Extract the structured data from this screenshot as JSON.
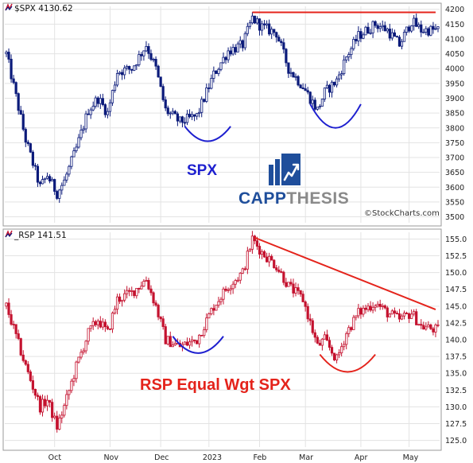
{
  "colors": {
    "spx_candle": "#0b1a7a",
    "rsp_candle": "#c4122f",
    "trendline_red": "#e4231b",
    "arc_blue": "#1d1fcf",
    "brand_blue": "#1f4e9b",
    "brand_gray": "#8a8a8a",
    "grid": "#e3e3e3"
  },
  "header": {
    "spx": "$SPX 4130.62",
    "rsp": "_RSP 141.51"
  },
  "annotations": {
    "spx_label": "SPX",
    "rsp_label": "RSP Equal Wgt SPX",
    "brand_left": "CAPP",
    "brand_right": "THESIS",
    "credit": "©StockCharts.com"
  },
  "icons": [
    "stockcharts-mini-icon",
    "capp-thesis-logo-icon"
  ],
  "chart_data": [
    {
      "type": "candlestick",
      "series_name": "$SPX",
      "ylim": [
        3480,
        4210
      ],
      "yticks": [
        3500,
        3550,
        3600,
        3650,
        3700,
        3750,
        3800,
        3850,
        3900,
        3950,
        4000,
        4050,
        4100,
        4150,
        4200
      ],
      "months": [
        "Oct",
        "Nov",
        "Dec",
        "2023",
        "Feb",
        "Mar",
        "Apr",
        "May"
      ],
      "month_day_index": [
        20,
        43,
        64,
        84,
        105,
        124,
        147,
        167
      ],
      "grid": true,
      "keypoints": [
        {
          "day": 0,
          "value": 4050
        },
        {
          "day": 8,
          "value": 3760
        },
        {
          "day": 14,
          "value": 3600
        },
        {
          "day": 17,
          "value": 3640
        },
        {
          "day": 21,
          "value": 3580
        },
        {
          "day": 24,
          "value": 3620
        },
        {
          "day": 29,
          "value": 3730
        },
        {
          "day": 34,
          "value": 3860
        },
        {
          "day": 38,
          "value": 3900
        },
        {
          "day": 42,
          "value": 3850
        },
        {
          "day": 46,
          "value": 3990
        },
        {
          "day": 52,
          "value": 4000
        },
        {
          "day": 58,
          "value": 4080
        },
        {
          "day": 62,
          "value": 4000
        },
        {
          "day": 66,
          "value": 3860
        },
        {
          "day": 72,
          "value": 3820
        },
        {
          "day": 79,
          "value": 3840
        },
        {
          "day": 86,
          "value": 3980
        },
        {
          "day": 92,
          "value": 4060
        },
        {
          "day": 98,
          "value": 4080
        },
        {
          "day": 102,
          "value": 4170
        },
        {
          "day": 106,
          "value": 4140
        },
        {
          "day": 112,
          "value": 4120
        },
        {
          "day": 117,
          "value": 4000
        },
        {
          "day": 123,
          "value": 3940
        },
        {
          "day": 129,
          "value": 3860
        },
        {
          "day": 132,
          "value": 3920
        },
        {
          "day": 137,
          "value": 3960
        },
        {
          "day": 141,
          "value": 4040
        },
        {
          "day": 146,
          "value": 4110
        },
        {
          "day": 153,
          "value": 4150
        },
        {
          "day": 158,
          "value": 4130
        },
        {
          "day": 163,
          "value": 4080
        },
        {
          "day": 168,
          "value": 4160
        },
        {
          "day": 172,
          "value": 4130
        },
        {
          "day": 178,
          "value": 4130
        }
      ],
      "horizontal_line": {
        "value": 4190,
        "from_day": 102,
        "to_day": 178
      },
      "arcs": [
        {
          "from_day": 74,
          "to_day": 93,
          "value_top": 3805,
          "value_bottom": 3755
        },
        {
          "from_day": 126,
          "to_day": 147,
          "value_top": 3880,
          "value_bottom": 3800
        }
      ]
    },
    {
      "type": "candlestick",
      "series_name": "_RSP",
      "ylim": [
        124,
        156
      ],
      "yticks": [
        125,
        127.5,
        130,
        132.5,
        135,
        137.5,
        140,
        142.5,
        145,
        147.5,
        150,
        152.5,
        155
      ],
      "months": [
        "Oct",
        "Nov",
        "Dec",
        "2023",
        "Feb",
        "Mar",
        "Apr",
        "May"
      ],
      "month_day_index": [
        20,
        43,
        64,
        84,
        105,
        124,
        147,
        167
      ],
      "grid": true,
      "keypoints": [
        {
          "day": 0,
          "value": 145
        },
        {
          "day": 8,
          "value": 136
        },
        {
          "day": 14,
          "value": 130
        },
        {
          "day": 17,
          "value": 131
        },
        {
          "day": 21,
          "value": 127
        },
        {
          "day": 24,
          "value": 130
        },
        {
          "day": 29,
          "value": 136
        },
        {
          "day": 34,
          "value": 141
        },
        {
          "day": 38,
          "value": 143
        },
        {
          "day": 42,
          "value": 141
        },
        {
          "day": 46,
          "value": 146
        },
        {
          "day": 52,
          "value": 147
        },
        {
          "day": 58,
          "value": 149
        },
        {
          "day": 62,
          "value": 145
        },
        {
          "day": 66,
          "value": 140
        },
        {
          "day": 72,
          "value": 139
        },
        {
          "day": 79,
          "value": 140
        },
        {
          "day": 86,
          "value": 145
        },
        {
          "day": 92,
          "value": 148
        },
        {
          "day": 98,
          "value": 150
        },
        {
          "day": 102,
          "value": 155
        },
        {
          "day": 106,
          "value": 153
        },
        {
          "day": 112,
          "value": 151
        },
        {
          "day": 117,
          "value": 148
        },
        {
          "day": 123,
          "value": 146
        },
        {
          "day": 129,
          "value": 139
        },
        {
          "day": 132,
          "value": 140
        },
        {
          "day": 137,
          "value": 137
        },
        {
          "day": 141,
          "value": 141
        },
        {
          "day": 146,
          "value": 144
        },
        {
          "day": 153,
          "value": 145.5
        },
        {
          "day": 158,
          "value": 144
        },
        {
          "day": 163,
          "value": 143
        },
        {
          "day": 168,
          "value": 144
        },
        {
          "day": 172,
          "value": 142
        },
        {
          "day": 178,
          "value": 141.5
        }
      ],
      "trendline": {
        "from_day": 103,
        "from_value": 155.2,
        "to_day": 178,
        "to_value": 144.5
      },
      "arcs": [
        {
          "from_day": 69,
          "to_day": 90,
          "value_top": 140.5,
          "value_bottom": 138
        },
        {
          "from_day": 130,
          "to_day": 153,
          "value_top": 137.8,
          "value_bottom": 135.2
        }
      ]
    }
  ]
}
